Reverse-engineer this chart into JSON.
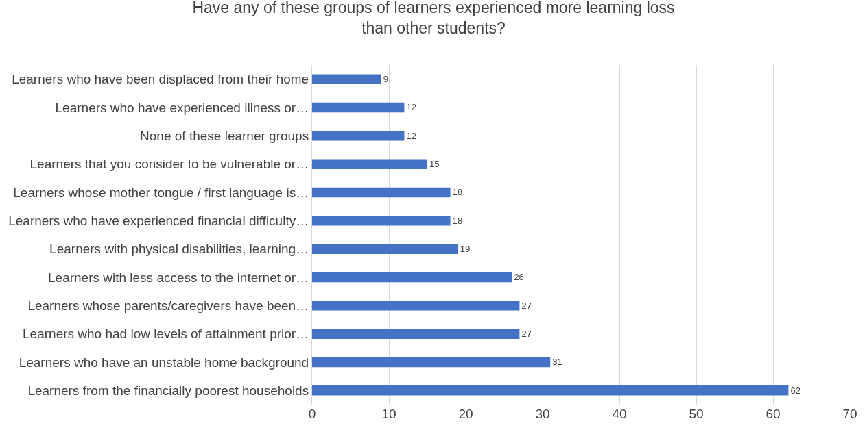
{
  "chart_data": {
    "type": "bar",
    "orientation": "horizontal",
    "title": "Have any of these groups of learners experienced more learning loss than other students?",
    "categories": [
      "Learners who have been displaced from their home",
      "Learners who have experienced illness or…",
      "None of these learner groups",
      "Learners that you consider to be vulnerable or…",
      "Learners whose mother tongue / first language is…",
      "Learners who have experienced financial difficulty…",
      "Learners with physical disabilities, learning…",
      "Learners with less access to the internet or…",
      "Learners whose parents/caregivers have been…",
      "Learners who had low levels of attainment prior…",
      "Learners who have an unstable home background",
      "Learners from the financially poorest households"
    ],
    "values": [
      9,
      12,
      12,
      15,
      18,
      18,
      19,
      26,
      27,
      27,
      31,
      62
    ],
    "color": "#4472c4",
    "xlim": [
      0,
      70
    ],
    "xticks": [
      0,
      10,
      20,
      30,
      40,
      50,
      60,
      70
    ],
    "grid": "x",
    "data_labels": true
  }
}
